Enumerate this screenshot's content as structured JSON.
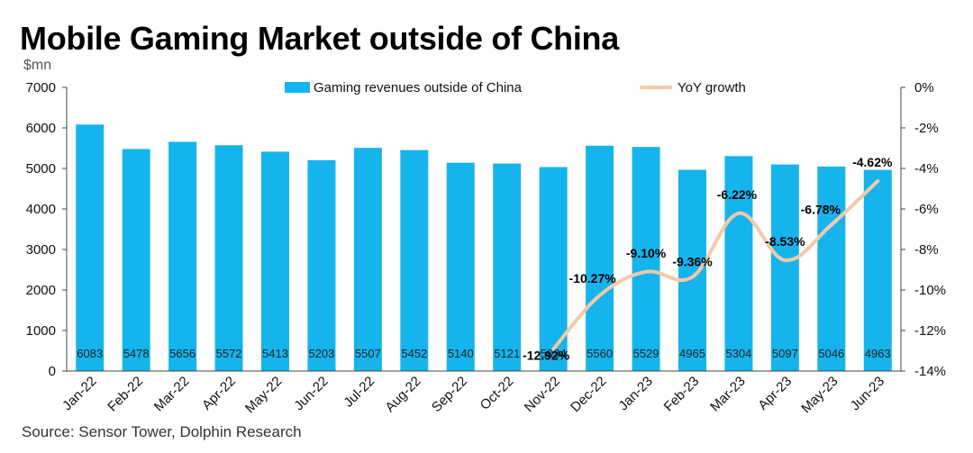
{
  "title": "Mobile Gaming Market outside of China",
  "unit_label": "$mn",
  "source": "Source: Sensor Tower, Dolphin Research",
  "colors": {
    "bar": "#15B4EC",
    "line": "#F3C9A8",
    "text": "#000000",
    "axis": "#444444"
  },
  "chart_data": {
    "type": "bar",
    "categories": [
      "Jan-22",
      "Feb-22",
      "Mar-22",
      "Apr-22",
      "May-22",
      "Jun-22",
      "Jul-22",
      "Aug-22",
      "Sep-22",
      "Oct-22",
      "Nov-22",
      "Dec-22",
      "Jan-23",
      "Feb-23",
      "Mar-23",
      "Apr-23",
      "May-23",
      "Jun-23"
    ],
    "series": [
      {
        "name": "Gaming revenues outside of China",
        "type": "bar",
        "axis": "left",
        "values": [
          6083,
          5478,
          5656,
          5572,
          5413,
          5203,
          5507,
          5452,
          5140,
          5121,
          5034,
          5560,
          5529,
          4965,
          5304,
          5097,
          5046,
          4963
        ],
        "labels": [
          "6083",
          "5478",
          "5656",
          "5572",
          "5413",
          "5203",
          "5507",
          "5452",
          "5140",
          "5121",
          "5034",
          "5560",
          "5529",
          "4965",
          "5304",
          "5097",
          "5046",
          "4963"
        ]
      },
      {
        "name": "YoY growth",
        "type": "line",
        "axis": "right",
        "values": [
          null,
          null,
          null,
          null,
          null,
          null,
          null,
          null,
          null,
          null,
          -12.92,
          -10.27,
          -9.1,
          -9.36,
          -6.22,
          -8.53,
          -6.78,
          -4.62
        ],
        "labels": [
          "",
          "",
          "",
          "",
          "",
          "",
          "",
          "",
          "",
          "",
          "-12.92%",
          "-10.27%",
          "-9.10%",
          "-9.36%",
          "-6.22%",
          "-8.53%",
          "-6.78%",
          "-4.62%"
        ]
      }
    ],
    "y_left": {
      "min": 0,
      "max": 7000,
      "ticks": [
        "0",
        "1000",
        "2000",
        "3000",
        "4000",
        "5000",
        "6000",
        "7000"
      ]
    },
    "y_right": {
      "min": -14,
      "max": 0,
      "ticks": [
        "-14%",
        "-12%",
        "-10%",
        "-8%",
        "-6%",
        "-4%",
        "-2%",
        "0%"
      ]
    },
    "grid": false,
    "legend_position": "top"
  }
}
